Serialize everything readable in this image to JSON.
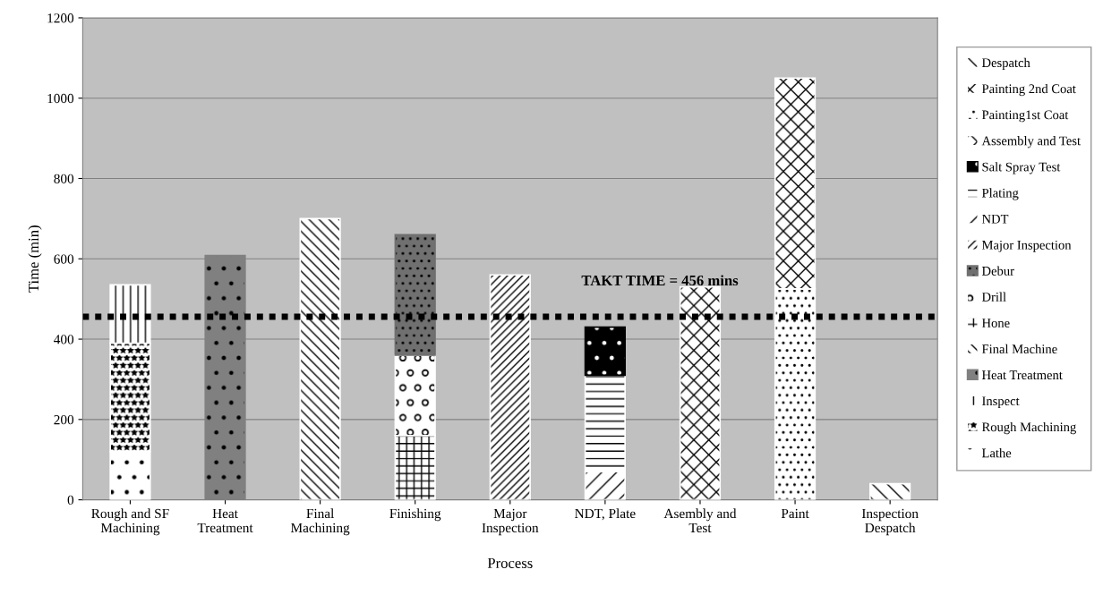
{
  "chart_data": {
    "type": "bar",
    "stacked": true,
    "xlabel": "Process",
    "ylabel": "Time (min)",
    "categories": [
      "Rough and SF\nMachining",
      "Heat\nTreatment",
      "Final\nMachining",
      "Finishing",
      "Major\nInspection",
      "NDT, Plate",
      "Asembly and\nTest",
      "Paint",
      "Inspection\nDespatch"
    ],
    "series": [
      {
        "name": "Lathe",
        "color": "#ffffff",
        "values": [
          120,
          null,
          null,
          null,
          null,
          null,
          null,
          null,
          null
        ]
      },
      {
        "name": "Rough Machining",
        "color": "#ffffff",
        "values": [
          270,
          null,
          null,
          null,
          null,
          null,
          null,
          null,
          null
        ]
      },
      {
        "name": "Inspect",
        "color": "#ffffff",
        "values": [
          145,
          null,
          null,
          null,
          null,
          null,
          null,
          null,
          null
        ]
      },
      {
        "name": "Heat Treatment",
        "color": "#808080",
        "values": [
          null,
          608,
          null,
          null,
          null,
          null,
          null,
          null,
          null
        ]
      },
      {
        "name": "Final Machine",
        "color": "#ffffff",
        "values": [
          null,
          null,
          700,
          null,
          null,
          null,
          null,
          null,
          null
        ]
      },
      {
        "name": "Hone",
        "color": "#ffffff",
        "values": [
          null,
          null,
          null,
          160,
          null,
          null,
          null,
          null,
          null
        ]
      },
      {
        "name": "Drill",
        "color": "#ffffff",
        "values": [
          null,
          null,
          null,
          200,
          null,
          null,
          null,
          null,
          null
        ]
      },
      {
        "name": "Debur",
        "color": "#707070",
        "values": [
          null,
          null,
          null,
          300,
          null,
          null,
          null,
          null,
          null
        ]
      },
      {
        "name": "Major Inspection",
        "color": "#ffffff",
        "values": [
          null,
          null,
          null,
          null,
          560,
          null,
          null,
          null,
          null
        ]
      },
      {
        "name": "NDT",
        "color": "#ffffff",
        "values": [
          null,
          null,
          null,
          null,
          null,
          70,
          null,
          null,
          null
        ]
      },
      {
        "name": "Plating",
        "color": "#ffffff",
        "values": [
          null,
          null,
          null,
          null,
          null,
          240,
          null,
          null,
          null
        ]
      },
      {
        "name": "Salt Spray Test",
        "color": "#000000",
        "values": [
          null,
          null,
          null,
          null,
          null,
          120,
          null,
          null,
          null
        ]
      },
      {
        "name": "Assembly and Test",
        "color": "#ffffff",
        "values": [
          null,
          null,
          null,
          null,
          null,
          null,
          530,
          null,
          null
        ]
      },
      {
        "name": "Painting1st Coat",
        "color": "#ffffff",
        "values": [
          null,
          null,
          null,
          null,
          null,
          null,
          null,
          525,
          null
        ]
      },
      {
        "name": "Painting 2nd Coat",
        "color": "#ffffff",
        "values": [
          null,
          null,
          null,
          null,
          null,
          null,
          null,
          525,
          null
        ]
      },
      {
        "name": "Despatch",
        "color": "#ffffff",
        "values": [
          null,
          null,
          null,
          null,
          null,
          null,
          null,
          null,
          40
        ]
      }
    ],
    "ylim": [
      0,
      1200
    ],
    "yticks": [
      0,
      200,
      400,
      600,
      800,
      1000,
      1200
    ],
    "grid": "y",
    "legend": "right",
    "ref_lines": [
      {
        "axis": "y",
        "value": 456,
        "label": "TAKT TIME = 456 mins",
        "color": "#000000",
        "line_style": "dotted"
      }
    ]
  }
}
